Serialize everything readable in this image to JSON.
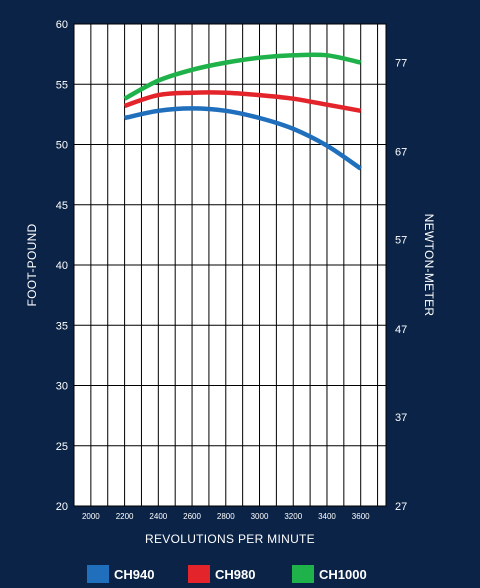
{
  "chart_data": {
    "type": "line",
    "xlabel": "REVOLUTIONS PER MINUTE",
    "ylabel": "FOOT-POUND",
    "y2label": "NEWTON-METER",
    "xlim": [
      1900,
      3750
    ],
    "ylim": [
      20,
      60
    ],
    "x_ticks": [
      2000,
      2200,
      2400,
      2600,
      2800,
      3000,
      3200,
      3400,
      3600
    ],
    "y_ticks": [
      20,
      25,
      30,
      35,
      40,
      45,
      50,
      55,
      60
    ],
    "y2_ticks": [
      {
        "value": 27,
        "at_ft_lb": 20
      },
      {
        "value": 37,
        "at_ft_lb": 27.4
      },
      {
        "value": 47,
        "at_ft_lb": 34.7
      },
      {
        "value": 57,
        "at_ft_lb": 42.1
      },
      {
        "value": 67,
        "at_ft_lb": 49.4
      },
      {
        "value": 77,
        "at_ft_lb": 56.8
      }
    ],
    "grid": true,
    "legend_position": "bottom",
    "series": [
      {
        "name": "CH940",
        "color": "#1f6fbd",
        "x": [
          2200,
          2400,
          2600,
          2800,
          3000,
          3200,
          3400,
          3600
        ],
        "y": [
          52.2,
          52.8,
          53.0,
          52.8,
          52.2,
          51.3,
          49.9,
          48.0
        ]
      },
      {
        "name": "CH980",
        "color": "#e3242b",
        "x": [
          2200,
          2400,
          2600,
          2800,
          3000,
          3200,
          3400,
          3600
        ],
        "y": [
          53.2,
          54.1,
          54.3,
          54.3,
          54.1,
          53.8,
          53.3,
          52.8
        ]
      },
      {
        "name": "CH1000",
        "color": "#1fb24a",
        "x": [
          2200,
          2400,
          2600,
          2800,
          3000,
          3200,
          3400,
          3600
        ],
        "y": [
          53.8,
          55.3,
          56.2,
          56.8,
          57.2,
          57.4,
          57.4,
          56.8
        ]
      }
    ]
  }
}
